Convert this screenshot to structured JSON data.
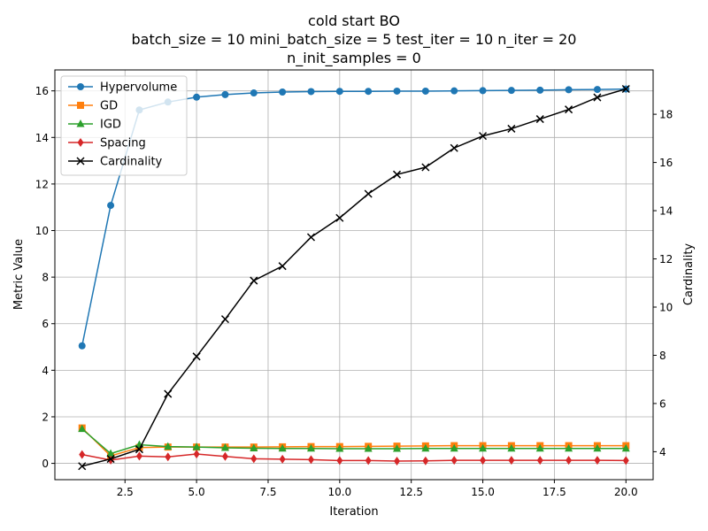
{
  "chart_data": {
    "type": "line",
    "title_lines": [
      "cold start BO",
      "batch_size = 10 mini_batch_size = 5 test_iter = 10 n_iter = 20",
      "n_init_samples = 0"
    ],
    "xlabel": "Iteration",
    "ylabel": "Metric Value",
    "y2label": "Cardinality",
    "xlim": [
      0.05,
      20.95
    ],
    "ylim": [
      -0.7,
      16.9
    ],
    "y2lim": [
      2.84,
      19.84
    ],
    "xticks": [
      2.5,
      5.0,
      7.5,
      10.0,
      12.5,
      15.0,
      17.5,
      20.0
    ],
    "yticks": [
      0,
      2,
      4,
      6,
      8,
      10,
      12,
      14,
      16
    ],
    "y2ticks": [
      4,
      6,
      8,
      10,
      12,
      14,
      16,
      18
    ],
    "grid": true,
    "legend_position": "top-left",
    "x": [
      1,
      2,
      3,
      4,
      5,
      6,
      7,
      8,
      9,
      10,
      11,
      12,
      13,
      14,
      15,
      16,
      17,
      18,
      19,
      20
    ],
    "series": [
      {
        "name": "Hypervolume",
        "axis": "left",
        "color": "#1f77b4",
        "marker": "circle",
        "values": [
          5.05,
          11.08,
          15.18,
          15.52,
          15.73,
          15.84,
          15.91,
          15.95,
          15.97,
          15.98,
          15.98,
          15.99,
          15.99,
          16.0,
          16.01,
          16.02,
          16.03,
          16.05,
          16.06,
          16.08
        ]
      },
      {
        "name": "GD",
        "axis": "left",
        "color": "#ff7f0e",
        "marker": "square",
        "values": [
          1.52,
          0.32,
          0.68,
          0.7,
          0.7,
          0.7,
          0.7,
          0.71,
          0.72,
          0.72,
          0.73,
          0.74,
          0.75,
          0.76,
          0.76,
          0.76,
          0.76,
          0.76,
          0.76,
          0.76
        ]
      },
      {
        "name": "IGD",
        "axis": "left",
        "color": "#2ca02c",
        "marker": "triangle",
        "values": [
          1.48,
          0.42,
          0.8,
          0.72,
          0.7,
          0.67,
          0.65,
          0.64,
          0.64,
          0.63,
          0.63,
          0.63,
          0.64,
          0.64,
          0.64,
          0.64,
          0.64,
          0.64,
          0.64,
          0.64
        ]
      },
      {
        "name": "Spacing",
        "axis": "left",
        "color": "#d62728",
        "marker": "diamond",
        "values": [
          0.38,
          0.14,
          0.31,
          0.28,
          0.4,
          0.3,
          0.2,
          0.18,
          0.16,
          0.12,
          0.12,
          0.1,
          0.11,
          0.13,
          0.13,
          0.13,
          0.13,
          0.13,
          0.13,
          0.12
        ]
      },
      {
        "name": "Cardinality",
        "axis": "right",
        "color": "#000000",
        "marker": "x",
        "values": [
          3.4,
          3.7,
          4.1,
          6.4,
          7.95,
          9.5,
          11.1,
          11.7,
          12.9,
          13.7,
          14.7,
          15.5,
          15.8,
          16.6,
          17.1,
          17.4,
          17.8,
          18.2,
          18.7,
          19.05
        ]
      }
    ]
  }
}
